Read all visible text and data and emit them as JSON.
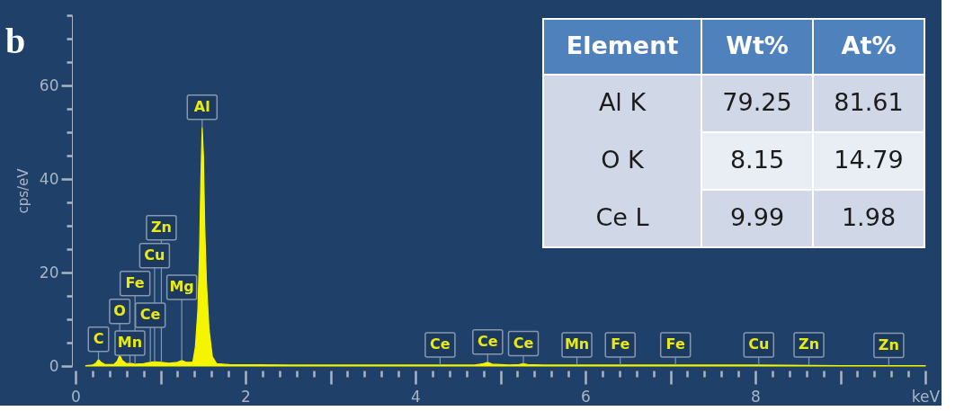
{
  "chart_data": [
    {
      "type": "area",
      "title": "b",
      "ylabel": "cps/eV",
      "xlim": [
        0,
        10
      ],
      "ylim": [
        0,
        75
      ],
      "xticks": [
        0,
        {
          "value": 0.2,
          "label": null
        },
        {
          "value": 0.4,
          "label": null
        },
        {
          "value": 0.6,
          "label": null
        },
        {
          "value": 0.8,
          "label": null
        },
        {
          "value": 1,
          "label": null
        },
        {
          "value": 1.2,
          "label": null
        },
        {
          "value": 1.4,
          "label": null
        },
        {
          "value": 1.6,
          "label": null
        },
        {
          "value": 1.8,
          "label": null
        },
        2,
        {
          "value": 2.2,
          "label": null
        },
        {
          "value": 2.4,
          "label": null
        },
        {
          "value": 2.6,
          "label": null
        },
        {
          "value": 2.8,
          "label": null
        },
        {
          "value": 3,
          "label": null
        },
        {
          "value": 3.2,
          "label": null
        },
        {
          "value": 3.4,
          "label": null
        },
        {
          "value": 3.6,
          "label": null
        },
        {
          "value": 3.8,
          "label": null
        },
        4,
        {
          "value": 4.2,
          "label": null
        },
        {
          "value": 4.4,
          "label": null
        },
        {
          "value": 4.6,
          "label": null
        },
        {
          "value": 4.8,
          "label": null
        },
        {
          "value": 5,
          "label": null
        },
        {
          "value": 5.2,
          "label": null
        },
        {
          "value": 5.4,
          "label": null
        },
        {
          "value": 5.6,
          "label": null
        },
        {
          "value": 5.8,
          "label": null
        },
        6,
        {
          "value": 6.2,
          "label": null
        },
        {
          "value": 6.4,
          "label": null
        },
        {
          "value": 6.6,
          "label": null
        },
        {
          "value": 6.8,
          "label": null
        },
        {
          "value": 7,
          "label": null
        },
        {
          "value": 7.2,
          "label": null
        },
        {
          "value": 7.4,
          "label": null
        },
        {
          "value": 7.6,
          "label": null
        },
        {
          "value": 7.8,
          "label": null
        },
        8,
        {
          "value": 8.2,
          "label": null
        },
        {
          "value": 8.4,
          "label": null
        },
        {
          "value": 8.6,
          "label": null
        },
        {
          "value": 8.8,
          "label": null
        },
        {
          "value": 9,
          "label": null
        },
        {
          "value": 9.2,
          "label": null
        },
        {
          "value": 9.4,
          "label": null
        },
        {
          "value": 9.6,
          "label": null
        },
        {
          "value": 9.8,
          "label": null
        },
        {
          "value": 10,
          "label": "keV"
        }
      ],
      "yticks": [
        0,
        {
          "value": 5,
          "label": null
        },
        {
          "value": 10,
          "label": null
        },
        {
          "value": 15,
          "label": null
        },
        20,
        {
          "value": 25,
          "label": null
        },
        {
          "value": 30,
          "label": null
        },
        {
          "value": 35,
          "label": null
        },
        40,
        {
          "value": 45,
          "label": null
        },
        {
          "value": 50,
          "label": null
        },
        {
          "value": 55,
          "label": null
        },
        60,
        {
          "value": 65,
          "label": null
        },
        {
          "value": 70,
          "label": null
        },
        {
          "value": 75,
          "label": null
        }
      ],
      "series": [
        {
          "color": "#f5f500",
          "x": [
            0.12,
            0.2,
            0.24,
            0.27,
            0.3,
            0.35,
            0.45,
            0.49,
            0.52,
            0.55,
            0.6,
            0.64,
            0.7,
            0.8,
            0.88,
            0.93,
            1.01,
            1.1,
            1.2,
            1.25,
            1.3,
            1.38,
            1.41,
            1.44,
            1.46,
            1.475,
            1.49,
            1.505,
            1.52,
            1.54,
            1.57,
            1.61,
            1.66,
            1.8,
            2.5,
            3.5,
            4.29,
            4.7,
            4.8,
            4.85,
            4.9,
            5.1,
            5.22,
            5.27,
            5.32,
            5.5,
            6.5,
            8,
            9,
            10
          ],
          "values": [
            0.1,
            0.2,
            0.6,
            1.4,
            0.8,
            0.3,
            0.3,
            1.0,
            2.3,
            1.2,
            0.5,
            0.6,
            0.4,
            0.5,
            0.8,
            0.9,
            0.8,
            0.6,
            0.8,
            1.2,
            0.8,
            0.8,
            4,
            12,
            25,
            40,
            51,
            45,
            30,
            18,
            8,
            2,
            0.5,
            0.3,
            0.2,
            0.2,
            0.2,
            0.2,
            0.5,
            0.8,
            0.4,
            0.2,
            0.3,
            0.5,
            0.3,
            0.2,
            0.2,
            0.2,
            0.1,
            0.1
          ]
        }
      ],
      "annotations": [
        {
          "text": "C",
          "x": 0.27,
          "y": 1.4
        },
        {
          "text": "O",
          "x": 0.52,
          "y": 2.3
        },
        {
          "text": "Mn",
          "x": 0.64,
          "y": 0.6
        },
        {
          "text": "Fe",
          "x": 0.7,
          "y": 0.4
        },
        {
          "text": "Ce",
          "x": 0.88,
          "y": 0.8
        },
        {
          "text": "Cu",
          "x": 0.93,
          "y": 0.9
        },
        {
          "text": "Zn",
          "x": 1.01,
          "y": 0.8
        },
        {
          "text": "Mg",
          "x": 1.25,
          "y": 1.2
        },
        {
          "text": "Al",
          "x": 1.49,
          "y": 51
        },
        {
          "text": "Ce",
          "x": 4.29,
          "y": 0.2
        },
        {
          "text": "Ce",
          "x": 4.85,
          "y": 0.8
        },
        {
          "text": "Ce",
          "x": 5.27,
          "y": 0.5
        },
        {
          "text": "Mn",
          "x": 5.9,
          "y": 0.2
        },
        {
          "text": "Fe",
          "x": 6.41,
          "y": 0.2
        },
        {
          "text": "Fe",
          "x": 7.06,
          "y": 0.2
        },
        {
          "text": "Cu",
          "x": 8.04,
          "y": 0.2
        },
        {
          "text": "Zn",
          "x": 8.63,
          "y": 0.2
        },
        {
          "text": "Zn",
          "x": 9.57,
          "y": 0.1
        }
      ]
    },
    {
      "type": "heatmap",
      "ylabel": "Element",
      "categories": [
        "Wt%",
        "At%"
      ],
      "y_categories": [
        "Al K",
        "O K",
        "Ce L"
      ],
      "cells": [
        [
          79.25,
          81.61
        ],
        [
          8.15,
          14.79
        ],
        [
          9.99,
          1.98
        ]
      ],
      "data_labels": true
    }
  ]
}
